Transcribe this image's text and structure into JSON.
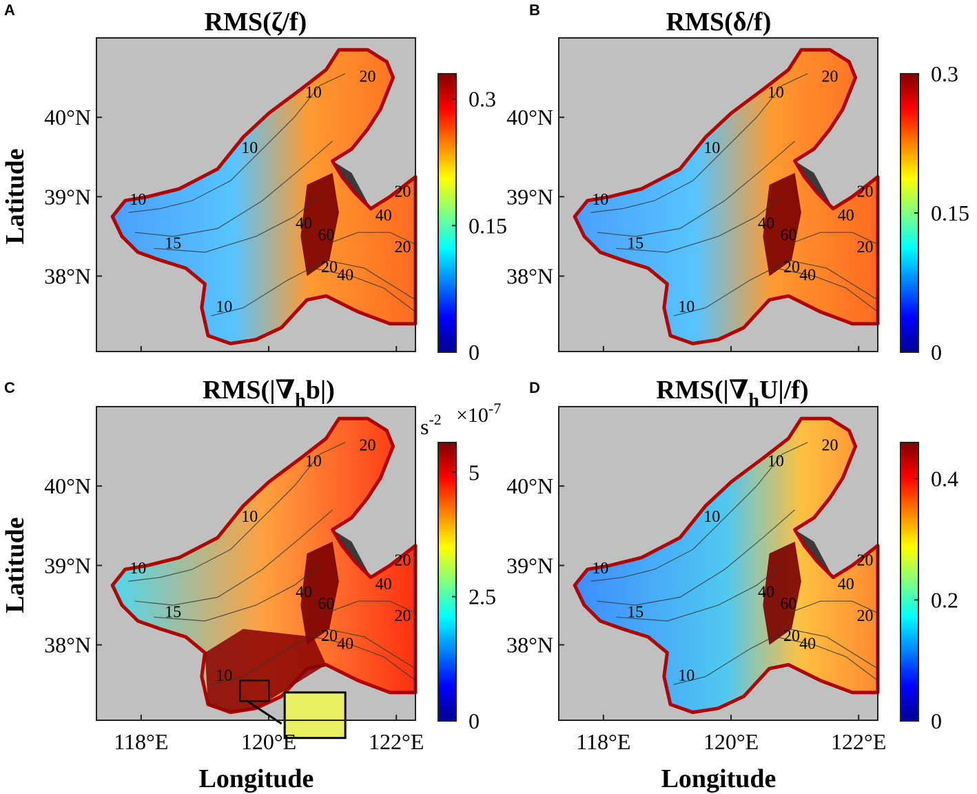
{
  "figure": {
    "panels": [
      {
        "id": "A",
        "letter": "A",
        "title": "RMS(ζ/f)",
        "colorbar": {
          "ticks": [
            "0",
            "0.15",
            "0.3"
          ],
          "tick_values": [
            0,
            0.15,
            0.3
          ],
          "range": [
            0,
            0.33
          ],
          "unit": "",
          "exponent": ""
        }
      },
      {
        "id": "B",
        "letter": "B",
        "title": "RMS(δ/f)",
        "colorbar": {
          "ticks": [
            "0",
            "0.15",
            "0.3"
          ],
          "tick_values": [
            0,
            0.15,
            0.3
          ],
          "range": [
            0,
            0.3
          ],
          "unit": "",
          "exponent": ""
        }
      },
      {
        "id": "C",
        "letter": "C",
        "title": "RMS(|∇hb|)",
        "colorbar": {
          "ticks": [
            "0",
            "2.5",
            "5"
          ],
          "tick_values": [
            0,
            2.5,
            5
          ],
          "range": [
            0,
            5.6
          ],
          "unit": "s-2",
          "exponent": "×10-7"
        }
      },
      {
        "id": "D",
        "letter": "D",
        "title": "RMS(|∇hU|/f)",
        "colorbar": {
          "ticks": [
            "0",
            "0.2",
            "0.4"
          ],
          "tick_values": [
            0,
            0.2,
            0.4
          ],
          "range": [
            0,
            0.46
          ],
          "unit": "",
          "exponent": ""
        }
      }
    ],
    "axes": {
      "ylabel": "Latitude",
      "xlabel": "Longitude",
      "lat_ticks": [
        "38°N",
        "39°N",
        "40°N"
      ],
      "lat_values": [
        38,
        39,
        40
      ],
      "lon_ticks": [
        "118°E",
        "120°E",
        "122°E"
      ],
      "lon_values": [
        118,
        120,
        122
      ],
      "lon_range": [
        117.3,
        122.3
      ],
      "lat_range": [
        37.05,
        41.0
      ]
    },
    "contour_labels": [
      "10",
      "10",
      "10",
      "15",
      "10",
      "20",
      "20",
      "20",
      "40",
      "40",
      "60",
      "20",
      "40"
    ],
    "colors": {
      "land": "#c0c0c0",
      "coast_land": "#3a3a3a",
      "colormap": [
        "#00008f",
        "#0000ff",
        "#0080ff",
        "#00ffff",
        "#80ff80",
        "#ffff00",
        "#ff8000",
        "#ff0000",
        "#800000"
      ]
    }
  }
}
